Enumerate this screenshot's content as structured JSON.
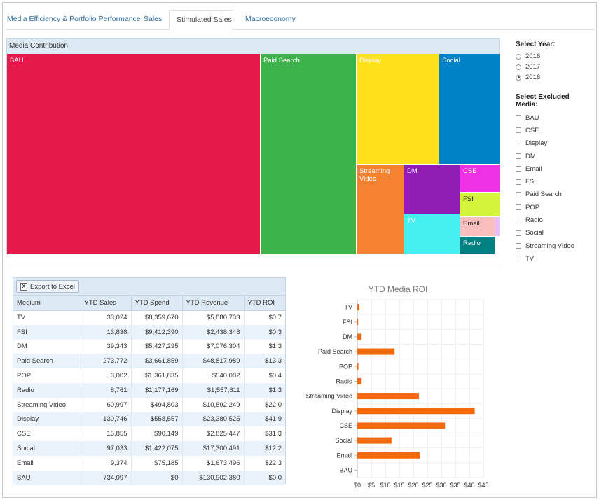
{
  "tabs": [
    {
      "label": "Media Efficiency & Portfolio Performance",
      "active": false
    },
    {
      "label": "Sales",
      "active": false
    },
    {
      "label": "Stimulated Sales",
      "active": true
    },
    {
      "label": "Macroeconomy",
      "active": false
    }
  ],
  "treemap": {
    "title": "Media Contribution",
    "cells": [
      {
        "label": "BAU",
        "color": "#e5194b"
      },
      {
        "label": "Paid Search",
        "color": "#3cb44b"
      },
      {
        "label": "Display",
        "color": "#ffe119"
      },
      {
        "label": "Social",
        "color": "#0082c8"
      },
      {
        "label": "Streaming Video",
        "color": "#f58231"
      },
      {
        "label": "DM",
        "color": "#911eb4"
      },
      {
        "label": "CSE",
        "color": "#f032e6"
      },
      {
        "label": "FSI",
        "color": "#d2f53c"
      },
      {
        "label": "TV",
        "color": "#46f0f0"
      },
      {
        "label": "Email",
        "color": "#fabebe"
      },
      {
        "label": "Radio",
        "color": "#008080"
      }
    ]
  },
  "year_filter": {
    "label": "Select Year:",
    "options": [
      "2016",
      "2017",
      "2018"
    ],
    "selected": "2018"
  },
  "media_filter": {
    "label": "Select Excluded Media:",
    "options": [
      "BAU",
      "CSE",
      "Display",
      "DM",
      "Email",
      "FSI",
      "Paid Search",
      "POP",
      "Radio",
      "Social",
      "Streaming Video",
      "TV"
    ]
  },
  "grid": {
    "export_label": "Export to Excel",
    "columns": [
      "Medium",
      "YTD Sales",
      "YTD Spend",
      "YTD Revenue",
      "YTD ROI"
    ],
    "rows": [
      [
        "TV",
        "33,024",
        "$8,359,670",
        "$5,880,733",
        "$0.7"
      ],
      [
        "FSI",
        "13,838",
        "$9,412,390",
        "$2,438,346",
        "$0.3"
      ],
      [
        "DM",
        "39,343",
        "$5,427,295",
        "$7,076,304",
        "$1.3"
      ],
      [
        "Paid Search",
        "273,772",
        "$3,661,859",
        "$48,817,989",
        "$13.3"
      ],
      [
        "POP",
        "3,002",
        "$1,361,835",
        "$540,082",
        "$0.4"
      ],
      [
        "Radio",
        "8,761",
        "$1,177,169",
        "$1,557,611",
        "$1.3"
      ],
      [
        "Streaming Video",
        "60,997",
        "$494,803",
        "$10,892,249",
        "$22.0"
      ],
      [
        "Display",
        "130,746",
        "$558,557",
        "$23,380,525",
        "$41.9"
      ],
      [
        "CSE",
        "15,855",
        "$90,149",
        "$2,825,447",
        "$31.3"
      ],
      [
        "Social",
        "97,033",
        "$1,422,075",
        "$17,300,491",
        "$12.2"
      ],
      [
        "Email",
        "9,374",
        "$75,185",
        "$1,673,496",
        "$22.3"
      ],
      [
        "BAU",
        "734,097",
        "$0",
        "$130,902,380",
        "$0.0"
      ]
    ]
  },
  "chart_data": {
    "type": "bar",
    "orientation": "horizontal",
    "title": "YTD Media ROI",
    "categories": [
      "TV",
      "FSI",
      "DM",
      "Paid Search",
      "POP",
      "Radio",
      "Streaming Video",
      "Display",
      "CSE",
      "Social",
      "Email",
      "BAU"
    ],
    "values": [
      0.7,
      0.3,
      1.3,
      13.3,
      0.4,
      1.3,
      22.0,
      41.9,
      31.3,
      12.2,
      22.3,
      0.0
    ],
    "xlim": [
      0,
      45
    ],
    "xticks": [
      "$0",
      "$5",
      "$10",
      "$15",
      "$20",
      "$25",
      "$30",
      "$35",
      "$40",
      "$45"
    ],
    "bar_color": "#f26a0f",
    "grid": true
  }
}
